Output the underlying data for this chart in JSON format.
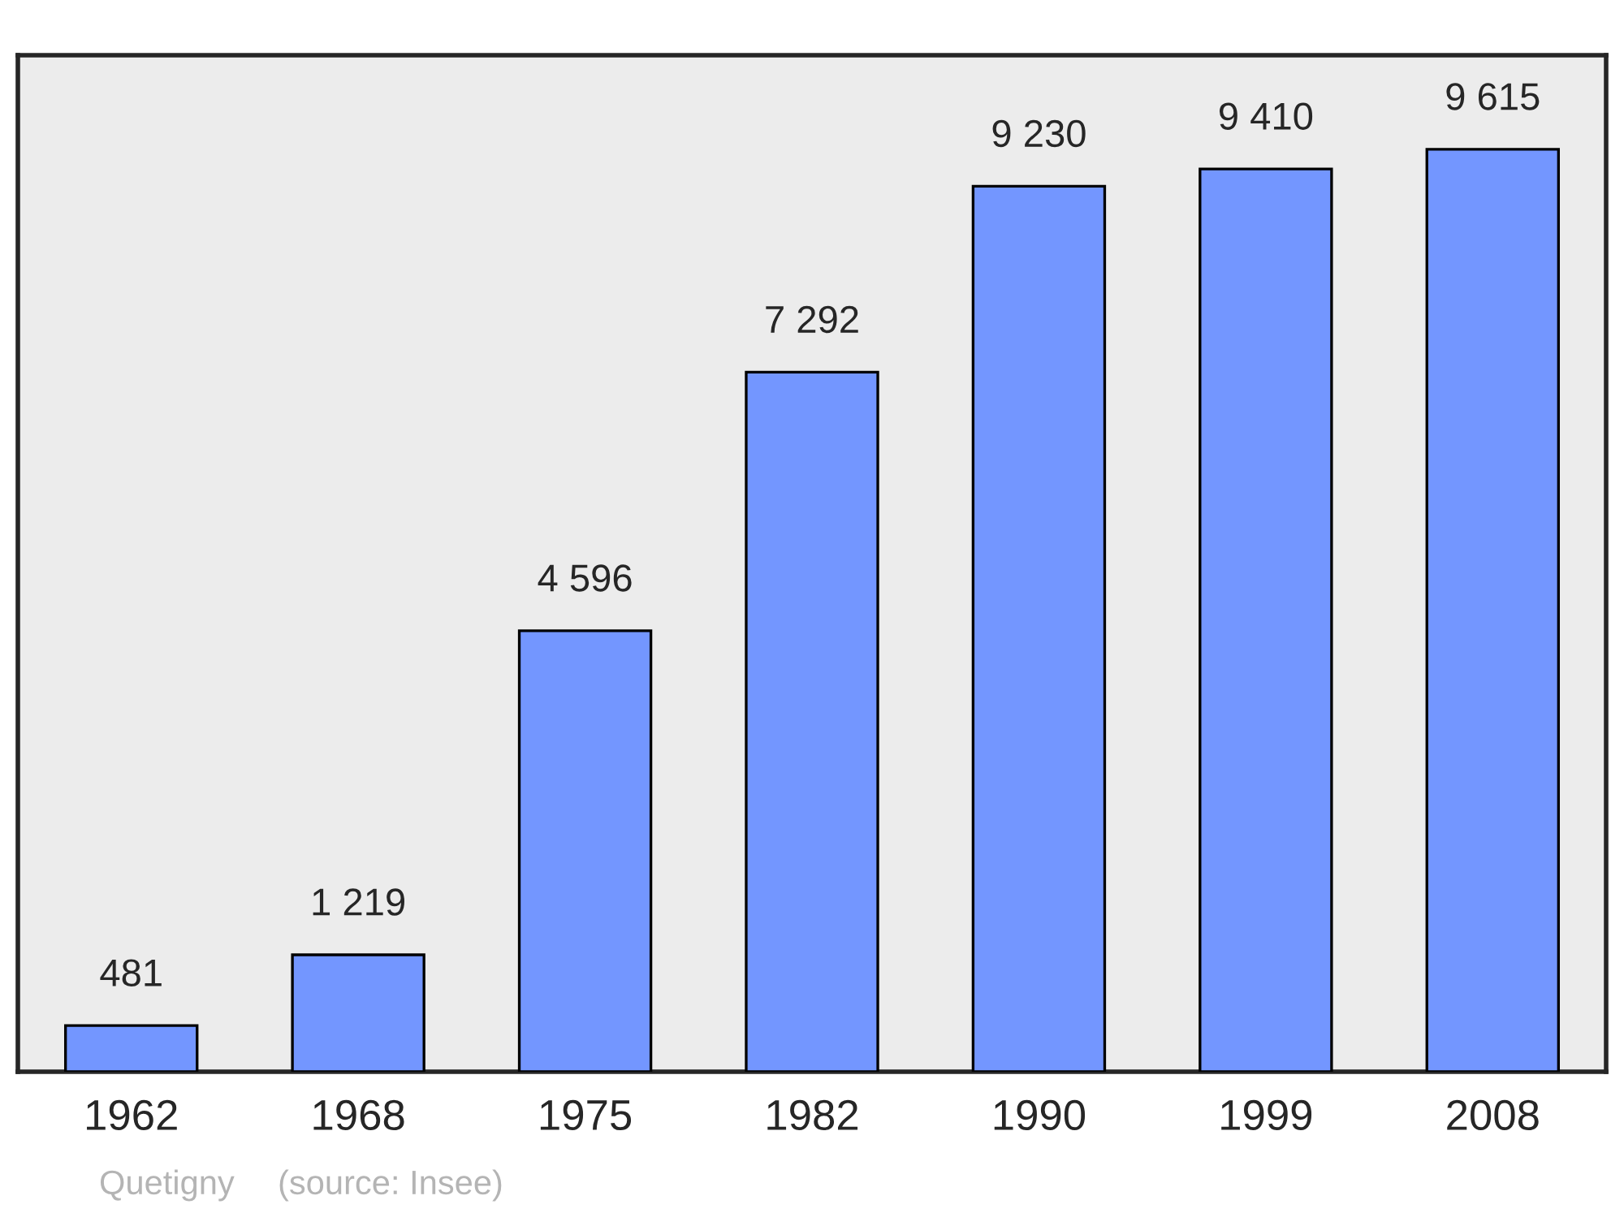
{
  "chart_data": {
    "type": "bar",
    "categories": [
      "1962",
      "1968",
      "1975",
      "1982",
      "1990",
      "1999",
      "2008"
    ],
    "values": [
      481,
      1219,
      4596,
      7292,
      9230,
      9410,
      9615
    ],
    "value_labels": [
      "481",
      "1 219",
      "4 596",
      "7 292",
      "9 230",
      "9 410",
      "9 615"
    ],
    "color": "#7396ff",
    "annotations": [
      "Quetigny",
      "(source: Insee)"
    ],
    "grid": false,
    "legend": false
  }
}
